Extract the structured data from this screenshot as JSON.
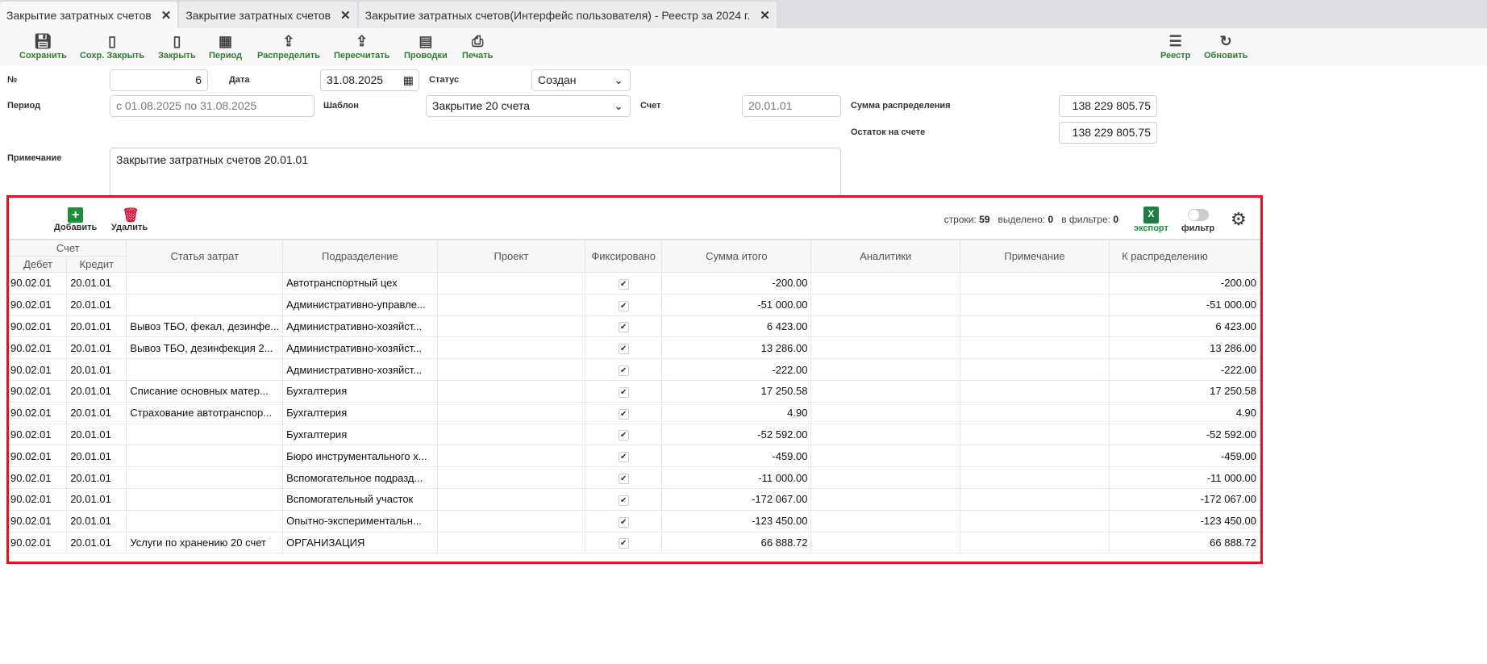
{
  "tabs": [
    {
      "label": "Закрытие затратных счетов",
      "active": true
    },
    {
      "label": "Закрытие затратных счетов",
      "active": false
    },
    {
      "label": "Закрытие затратных счетов(Интерфейс пользователя) - Реестр за 2024 г.",
      "active": false
    }
  ],
  "toolbar": {
    "save": "Сохранить",
    "save_close": "Сохр. Закрыть",
    "close": "Закрыть",
    "period": "Период",
    "distribute": "Распределить",
    "recalc": "Пересчитать",
    "postings": "Проводки",
    "print": "Печать",
    "registry": "Реестр",
    "refresh": "Обновить"
  },
  "form": {
    "number_label": "№",
    "number": "6",
    "date_label": "Дата",
    "date": "31.08.2025",
    "status_label": "Статус",
    "status": "Создан",
    "period_label": "Период",
    "period": "с 01.08.2025 по 31.08.2025",
    "template_label": "Шаблон",
    "template": "Закрытие 20 счета",
    "account_label": "Счет",
    "account": "20.01.01",
    "sum_label": "Сумма распределения",
    "sum": "138 229 805.75",
    "rest_label": "Остаток на счете",
    "rest": "138 229 805.75",
    "note_label": "Примечание",
    "note": "Закрытие затратных счетов  20.01.01"
  },
  "grid": {
    "add": "Добавить",
    "delete": "Удалить",
    "rows_label": "строки:",
    "rows": "59",
    "selected_label": "выделено:",
    "selected": "0",
    "filtered_label": "в фильтре:",
    "filtered": "0",
    "export": "экспорт",
    "filter": "фильтр",
    "filter_on": false,
    "group_header": "Счет",
    "columns": [
      "Дебет",
      "Кредит",
      "Статья затрат",
      "Подразделение",
      "Проект",
      "Фиксировано",
      "Сумма итого",
      "Аналитики",
      "Примечание",
      "К распределению"
    ],
    "rows_data": [
      [
        "90.02.01",
        "20.01.01",
        "",
        "Автотранспортный цех",
        "",
        true,
        "-200.00",
        "",
        "",
        "-200.00"
      ],
      [
        "90.02.01",
        "20.01.01",
        "",
        "Административно-управле...",
        "",
        true,
        "-51 000.00",
        "",
        "",
        "-51 000.00"
      ],
      [
        "90.02.01",
        "20.01.01",
        "Вывоз ТБО, фекал, дезинфе...",
        "Административно-хозяйст...",
        "",
        true,
        "6 423.00",
        "",
        "",
        "6 423.00"
      ],
      [
        "90.02.01",
        "20.01.01",
        "Вывоз ТБО, дезинфекция 2...",
        "Административно-хозяйст...",
        "",
        true,
        "13 286.00",
        "",
        "",
        "13 286.00"
      ],
      [
        "90.02.01",
        "20.01.01",
        "",
        "Административно-хозяйст...",
        "",
        true,
        "-222.00",
        "",
        "",
        "-222.00"
      ],
      [
        "90.02.01",
        "20.01.01",
        "Списание основных матер...",
        "Бухгалтерия",
        "",
        true,
        "17 250.58",
        "",
        "",
        "17 250.58"
      ],
      [
        "90.02.01",
        "20.01.01",
        "Страхование автотранспор...",
        "Бухгалтерия",
        "",
        true,
        "4.90",
        "",
        "",
        "4.90"
      ],
      [
        "90.02.01",
        "20.01.01",
        "",
        "Бухгалтерия",
        "",
        true,
        "-52 592.00",
        "",
        "",
        "-52 592.00"
      ],
      [
        "90.02.01",
        "20.01.01",
        "",
        "Бюро инструментального х...",
        "",
        true,
        "-459.00",
        "",
        "",
        "-459.00"
      ],
      [
        "90.02.01",
        "20.01.01",
        "",
        "Вспомогательное подразд...",
        "",
        true,
        "-11 000.00",
        "",
        "",
        "-11 000.00"
      ],
      [
        "90.02.01",
        "20.01.01",
        "",
        "Вспомогательный участок",
        "",
        true,
        "-172 067.00",
        "",
        "",
        "-172 067.00"
      ],
      [
        "90.02.01",
        "20.01.01",
        "",
        "Опытно-экспериментальн...",
        "",
        true,
        "-123 450.00",
        "",
        "",
        "-123 450.00"
      ],
      [
        "90.02.01",
        "20.01.01",
        "Услуги по хранению 20 счет",
        "ОРГАНИЗАЦИЯ",
        "",
        true,
        "66 888.72",
        "",
        "",
        "66 888.72"
      ]
    ]
  },
  "colors": {
    "accent": "#2e7d32",
    "highlight": "#e0141e",
    "delete": "#d81b3c",
    "excel": "#1e7e45"
  }
}
